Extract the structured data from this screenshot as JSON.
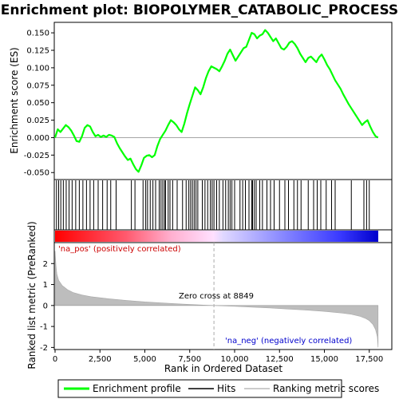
{
  "chart_data": {
    "type": "line",
    "title": "Enrichment plot: BIOPOLYMER_CATABOLIC_PROCESS",
    "xlabel": "Rank in Ordered Dataset",
    "ylabel_top": "Enrichment score (ES)",
    "ylabel_bottom": "Ranked list metric (PreRanked)",
    "xlim": [
      0,
      18000
    ],
    "x_ticks": [
      0,
      2500,
      5000,
      7500,
      10000,
      12500,
      15000,
      17500
    ],
    "x_tick_labels": [
      "0",
      "2,500",
      "5,000",
      "7,500",
      "10,000",
      "12,500",
      "15,000",
      "17,500"
    ],
    "es_ylim": [
      -0.06,
      0.165
    ],
    "es_ticks": [
      -0.05,
      -0.025,
      0.0,
      0.025,
      0.05,
      0.075,
      0.1,
      0.125,
      0.15
    ],
    "es_tick_labels": [
      "-0.050",
      "-0.025",
      "0.000",
      "0.025",
      "0.050",
      "0.075",
      "0.100",
      "0.125",
      "0.150"
    ],
    "metric_ylim": [
      -2.1,
      3.0
    ],
    "metric_ticks": [
      -2,
      -1,
      0,
      1,
      2
    ],
    "metric_tick_labels": [
      "-2",
      "-1",
      "0",
      "1",
      "2"
    ],
    "series": [
      {
        "name": "Enrichment profile",
        "color": "#00ff00",
        "x": [
          0,
          150,
          300,
          450,
          600,
          750,
          900,
          1050,
          1200,
          1350,
          1500,
          1650,
          1800,
          1950,
          2100,
          2250,
          2400,
          2550,
          2700,
          2850,
          3000,
          3150,
          3300,
          3450,
          3600,
          3750,
          3900,
          4050,
          4200,
          4350,
          4500,
          4650,
          4800,
          4950,
          5100,
          5250,
          5400,
          5550,
          5700,
          5850,
          6000,
          6150,
          6300,
          6450,
          6600,
          6750,
          6900,
          7050,
          7200,
          7350,
          7500,
          7650,
          7800,
          7950,
          8100,
          8250,
          8400,
          8550,
          8700,
          8850,
          9000,
          9150,
          9300,
          9450,
          9600,
          9750,
          9900,
          10050,
          10200,
          10350,
          10500,
          10650,
          10800,
          10950,
          11100,
          11250,
          11400,
          11550,
          11700,
          11850,
          12000,
          12150,
          12300,
          12450,
          12600,
          12750,
          12900,
          13050,
          13200,
          13350,
          13500,
          13650,
          13800,
          13950,
          14100,
          14250,
          14400,
          14550,
          14700,
          14850,
          15000,
          15150,
          15300,
          15450,
          15600,
          15750,
          15900,
          16050,
          16200,
          16350,
          16500,
          16650,
          16800,
          16950,
          17100,
          17250,
          17400,
          17550,
          17700,
          17850,
          17990
        ],
        "y": [
          0.0,
          0.012,
          0.008,
          0.013,
          0.018,
          0.015,
          0.01,
          0.003,
          -0.005,
          -0.006,
          0.002,
          0.014,
          0.018,
          0.016,
          0.008,
          0.002,
          0.004,
          0.001,
          0.003,
          0.001,
          0.004,
          0.003,
          0.001,
          -0.008,
          -0.015,
          -0.021,
          -0.027,
          -0.032,
          -0.03,
          -0.038,
          -0.045,
          -0.049,
          -0.04,
          -0.029,
          -0.026,
          -0.025,
          -0.028,
          -0.025,
          -0.012,
          -0.002,
          0.004,
          0.01,
          0.018,
          0.025,
          0.022,
          0.018,
          0.012,
          0.008,
          0.02,
          0.035,
          0.048,
          0.06,
          0.072,
          0.068,
          0.062,
          0.072,
          0.085,
          0.095,
          0.102,
          0.1,
          0.098,
          0.095,
          0.102,
          0.11,
          0.12,
          0.126,
          0.118,
          0.11,
          0.116,
          0.122,
          0.128,
          0.13,
          0.14,
          0.15,
          0.148,
          0.142,
          0.146,
          0.148,
          0.154,
          0.15,
          0.144,
          0.138,
          0.142,
          0.135,
          0.128,
          0.126,
          0.13,
          0.136,
          0.138,
          0.134,
          0.128,
          0.12,
          0.114,
          0.108,
          0.114,
          0.116,
          0.112,
          0.108,
          0.115,
          0.119,
          0.112,
          0.104,
          0.098,
          0.09,
          0.082,
          0.076,
          0.07,
          0.062,
          0.055,
          0.048,
          0.042,
          0.036,
          0.03,
          0.024,
          0.018,
          0.022,
          0.025,
          0.016,
          0.008,
          0.002,
          0.0
        ]
      }
    ],
    "legend": [
      {
        "label": "Enrichment profile",
        "color": "#00ff00"
      },
      {
        "label": "Hits",
        "color": "#000000"
      },
      {
        "label": "Ranking metric scores",
        "color": "#bbbbbb"
      }
    ],
    "hits": [
      80,
      200,
      320,
      460,
      620,
      780,
      950,
      1150,
      1350,
      1550,
      1750,
      1950,
      2150,
      2400,
      2650,
      2900,
      3100,
      3400,
      4250,
      4450,
      4900,
      5050,
      5150,
      5300,
      5450,
      5600,
      5800,
      5900,
      6000,
      6100,
      6150,
      6300,
      6400,
      6550,
      6800,
      7100,
      7300,
      7450,
      7550,
      7650,
      7750,
      7850,
      7950,
      8200,
      8350,
      8500,
      8650,
      8750,
      8850,
      9000,
      9150,
      9350,
      9500,
      9650,
      9750,
      9850,
      10000,
      10300,
      10450,
      10600,
      10800,
      10950,
      11000,
      11100,
      11200,
      11400,
      11550,
      11800,
      12000,
      12200,
      12500,
      12800,
      13000,
      13300,
      13500,
      13700,
      14100,
      14400,
      14600,
      14800,
      15100,
      15400,
      15600,
      16500,
      17200,
      17350,
      17500
    ],
    "metric_curve": {
      "x": [
        0,
        50,
        100,
        200,
        400,
        700,
        1000,
        1500,
        2000,
        3000,
        4000,
        5000,
        6000,
        7000,
        8000,
        8849,
        10000,
        11000,
        12000,
        13000,
        14000,
        15000,
        16000,
        16500,
        17000,
        17300,
        17500,
        17700,
        17850,
        17950,
        17990
      ],
      "y": [
        2.6,
        1.9,
        1.5,
        1.2,
        0.95,
        0.75,
        0.62,
        0.5,
        0.42,
        0.32,
        0.24,
        0.17,
        0.12,
        0.07,
        0.03,
        0.0,
        -0.04,
        -0.08,
        -0.12,
        -0.17,
        -0.22,
        -0.28,
        -0.36,
        -0.42,
        -0.52,
        -0.62,
        -0.72,
        -0.9,
        -1.15,
        -1.5,
        -2.0
      ]
    },
    "zero_cross": 8849,
    "annotations": {
      "pos_label": "'na_pos' (positively correlated)",
      "neg_label": "'na_neg' (negatively correlated)",
      "zero_cross_label": "Zero cross at 8849"
    }
  }
}
